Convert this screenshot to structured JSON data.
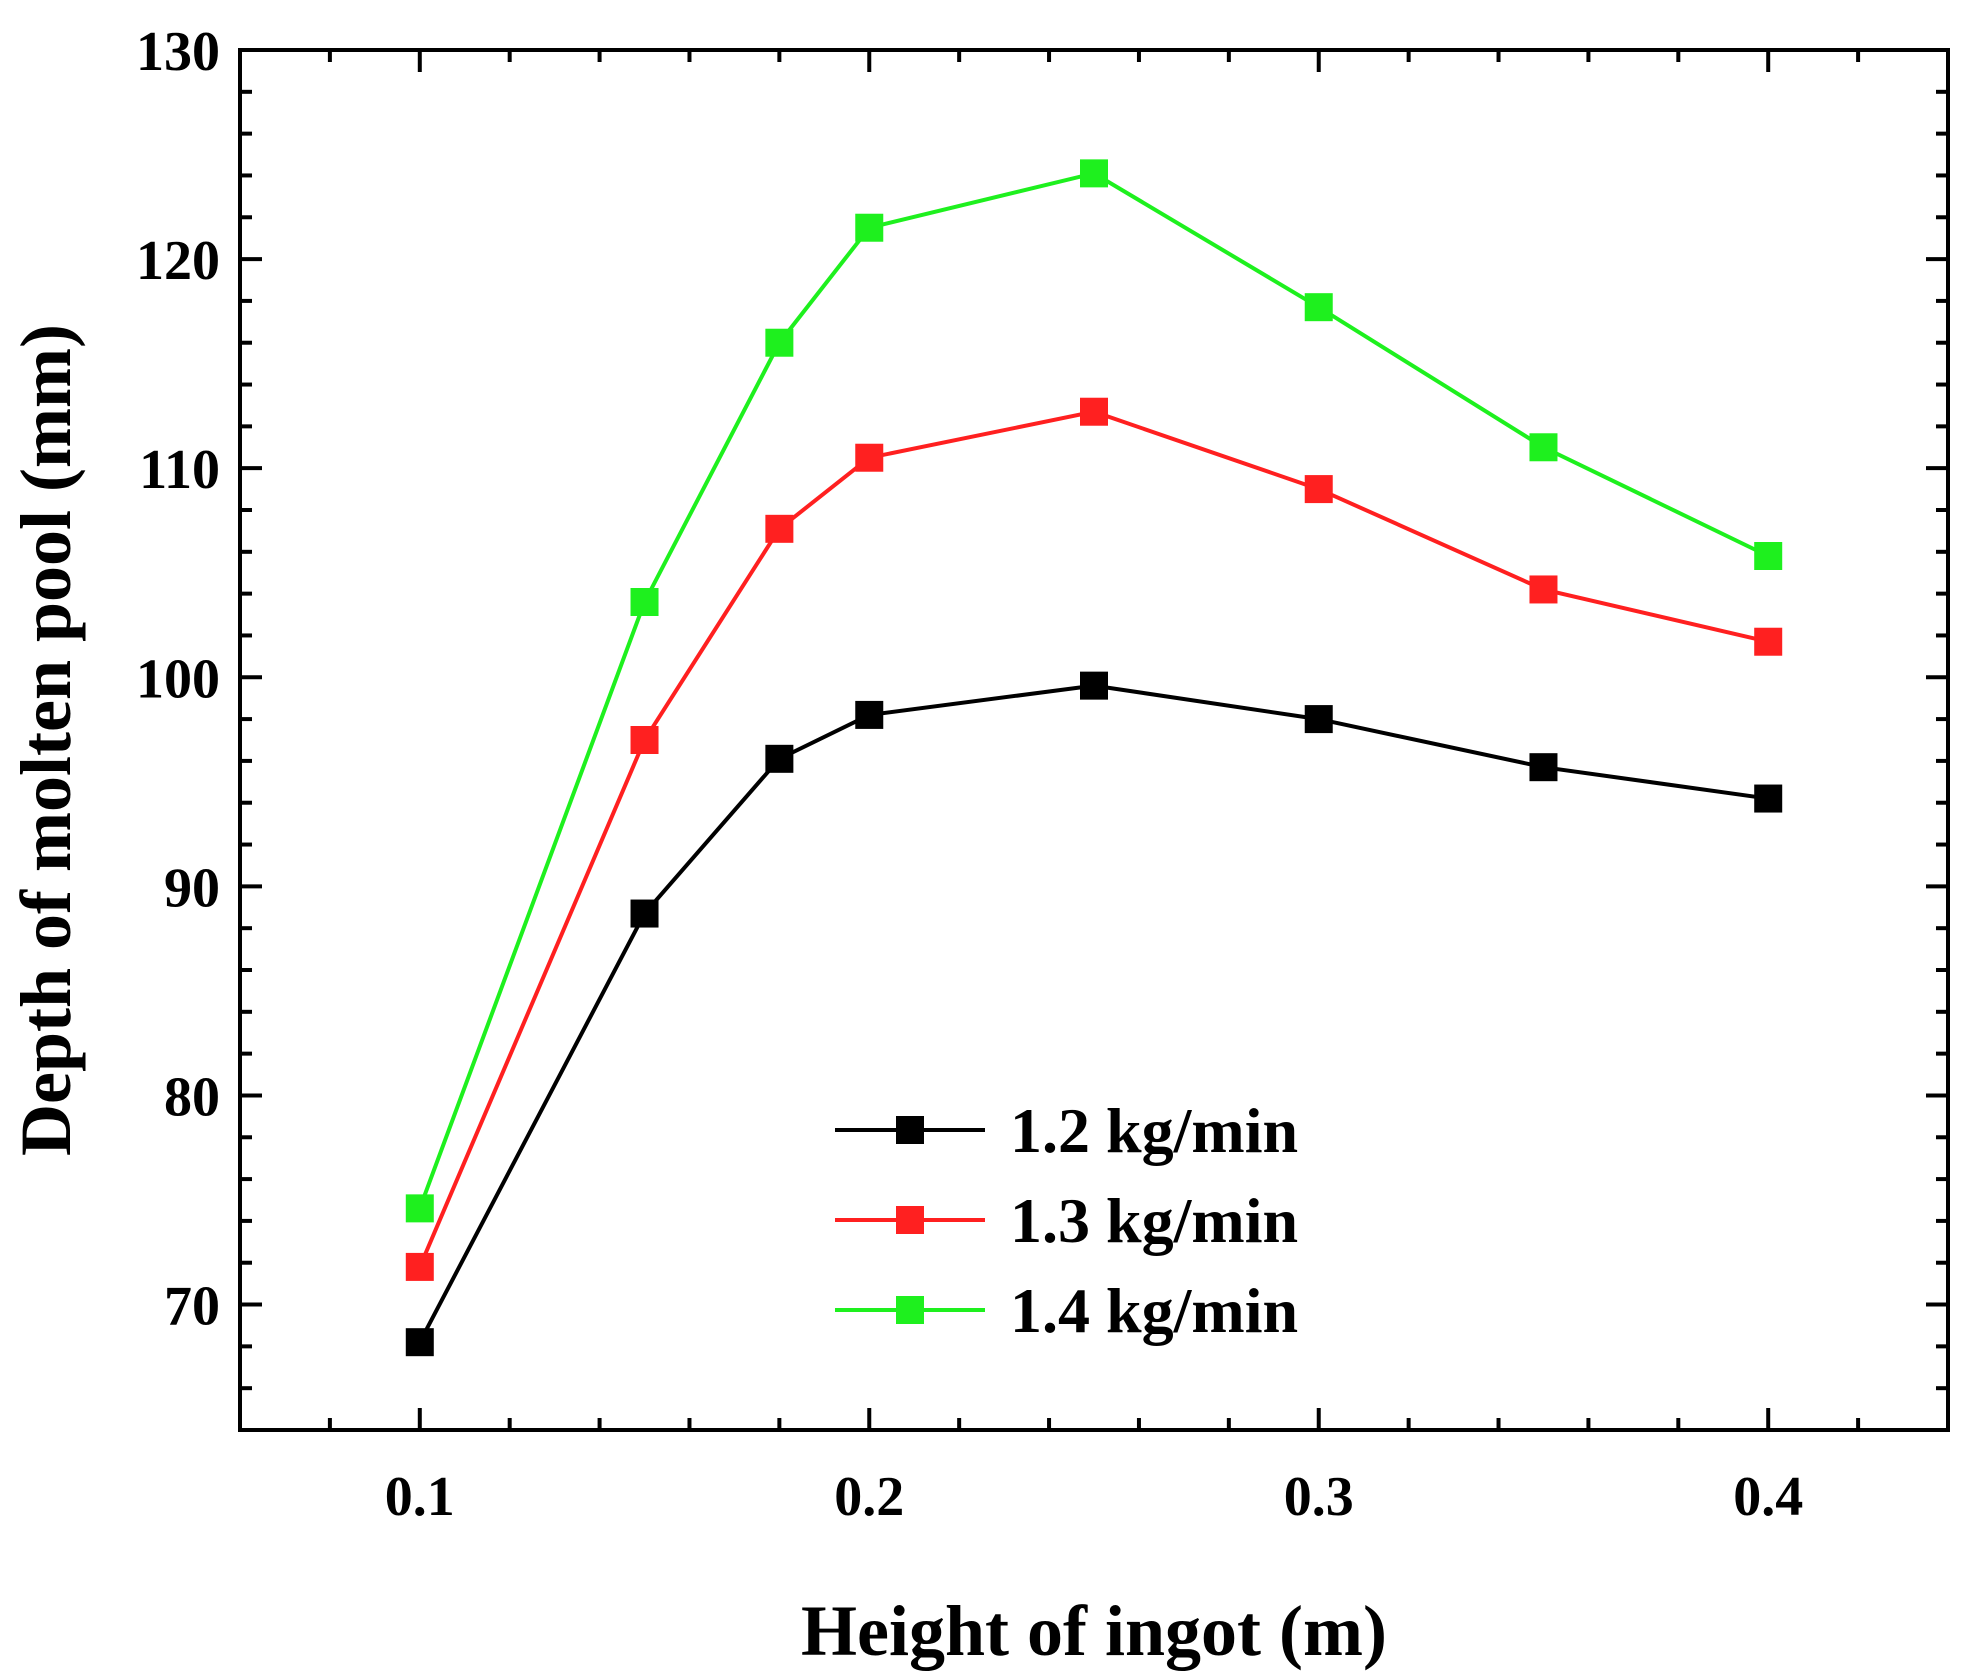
{
  "chart_data": {
    "type": "line",
    "title": "",
    "xlabel": "Height of ingot (m)",
    "ylabel": "Depth of molten pool (mm)",
    "xlim": [
      0.06,
      0.44
    ],
    "ylim": [
      64,
      130
    ],
    "x": [
      0.1,
      0.15,
      0.18,
      0.2,
      0.25,
      0.3,
      0.35,
      0.4
    ],
    "x_ticks": [
      0.1,
      0.2,
      0.3,
      0.4
    ],
    "x_tick_labels": [
      "0.1",
      "0.2",
      "0.3",
      "0.4"
    ],
    "y_ticks": [
      70,
      80,
      90,
      100,
      110,
      120,
      130
    ],
    "y_tick_labels": [
      "70",
      "80",
      "90",
      "100",
      "110",
      "120",
      "130"
    ],
    "x_minor_step": 0.02,
    "y_minor_step": 2,
    "grid": false,
    "legend_position": "lower-center",
    "series": [
      {
        "name": "1.2 kg/min",
        "color": "#000000",
        "values": [
          68.2,
          88.7,
          96.1,
          98.2,
          99.6,
          98.0,
          95.7,
          94.2
        ]
      },
      {
        "name": "1.3 kg/min",
        "color": "#ff2020",
        "values": [
          71.8,
          97.0,
          107.1,
          110.5,
          112.7,
          109.0,
          104.2,
          101.7
        ]
      },
      {
        "name": "1.4 kg/min",
        "color": "#1ef01e",
        "values": [
          74.6,
          103.6,
          116.0,
          121.5,
          124.1,
          117.7,
          111.0,
          105.8
        ]
      }
    ]
  }
}
